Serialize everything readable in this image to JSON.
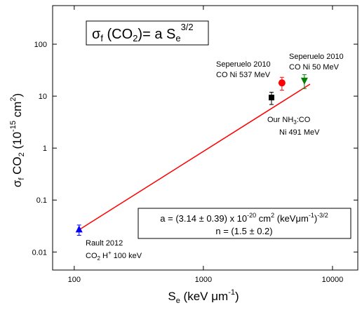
{
  "chart_data": {
    "type": "scatter",
    "title": [
      "σ",
      "f",
      " (CO",
      "2",
      ")= a S",
      "e",
      "3/2"
    ],
    "x_label": [
      "S",
      "e",
      " (keV ",
      "μ",
      "m",
      "-1",
      ")"
    ],
    "y_label": [
      "σ",
      "f",
      " CO",
      "2",
      " (10",
      "-15",
      " cm",
      "2",
      ")"
    ],
    "xscale": "log",
    "yscale": "log",
    "xlim": [
      68,
      15700
    ],
    "ylim": [
      0.0045,
      553
    ],
    "xticks": [
      100,
      1000,
      10000
    ],
    "yticks": [
      0.01,
      0.1,
      1,
      10,
      100
    ],
    "series": [
      {
        "x": [
          109
        ],
        "values": [
          0.027
        ],
        "errors": [
          0.006
        ],
        "color": "#0000ff",
        "marker": "triangle-up"
      },
      {
        "x": [
          3370
        ],
        "values": [
          9.4
        ],
        "errors": [
          2.5
        ],
        "color": "#000000",
        "marker": "square"
      },
      {
        "x": [
          4060
        ],
        "values": [
          18
        ],
        "errors": [
          5
        ],
        "color": "#ff0000",
        "marker": "circle"
      },
      {
        "x": [
          6060
        ],
        "values": [
          20
        ],
        "errors": [
          6
        ],
        "color": "#008000",
        "marker": "triangle-down"
      }
    ],
    "fit": {
      "x": [
        107,
        6700
      ],
      "y": [
        0.026,
        17
      ],
      "color": "#ff0000"
    },
    "annotations": {
      "seperuelo_537": [
        "Seperuelo 2010",
        "CO Ni 537 MeV"
      ],
      "seperuelo_50": [
        "Seperuelo 2010",
        "CO Ni 50 MeV"
      ],
      "ours": [
        "Our  NH",
        "3",
        ":CO",
        "Ni 491 MeV"
      ],
      "rault": [
        "Rault 2012",
        "CO",
        "2",
        " H",
        "+",
        " 100 keV"
      ],
      "fit": [
        "a = (3.14 ± 0.39) x 10",
        "-20",
        " cm",
        "2",
        " (keV",
        "μ",
        "m",
        "-1",
        ")",
        "-3/2",
        "n = (1.5 ± 0.2)"
      ]
    }
  }
}
